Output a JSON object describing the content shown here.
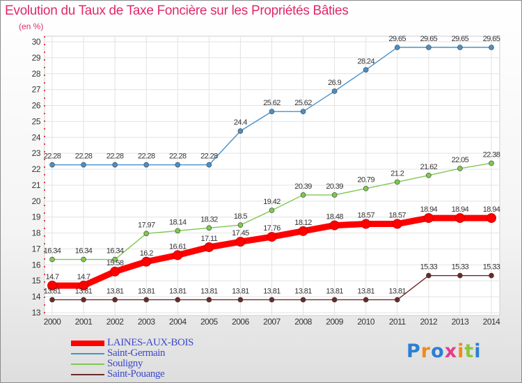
{
  "chart_data": {
    "type": "line",
    "title": "Evolution du Taux de Taxe Foncière sur les Propriétés Bâties",
    "unit_label": "(en %)",
    "x": [
      "2000",
      "2001",
      "2002",
      "2003",
      "2004",
      "2005",
      "2006",
      "2007",
      "2008",
      "2009",
      "2010",
      "2011",
      "2012",
      "2013",
      "2014"
    ],
    "ylim": [
      13,
      30
    ],
    "yticks": [
      13,
      14,
      15,
      16,
      17,
      18,
      19,
      20,
      21,
      22,
      23,
      24,
      25,
      26,
      27,
      28,
      29,
      30
    ],
    "grid": true,
    "legend_position": "bottom-left",
    "series": [
      {
        "name": "LAINES-AUX-BOIS",
        "color": "#ff0000",
        "values": [
          14.7,
          14.7,
          15.58,
          16.2,
          16.61,
          17.11,
          17.45,
          17.76,
          18.12,
          18.48,
          18.57,
          18.57,
          18.94,
          18.94,
          18.94
        ],
        "labels": [
          "14.7",
          "14.7",
          "15.58",
          "16.2",
          "16.61",
          "17.11",
          "17.45",
          "17.76",
          "18.12",
          "18.48",
          "18.57",
          "18.57",
          "18.94",
          "18.94",
          "18.94"
        ]
      },
      {
        "name": "Saint-Germain",
        "color": "#4a90c8",
        "values": [
          22.28,
          22.28,
          22.28,
          22.28,
          22.28,
          22.28,
          24.4,
          25.62,
          25.62,
          26.9,
          28.24,
          29.65,
          29.65,
          29.65,
          29.65
        ],
        "labels": [
          "22.28",
          "22.28",
          "22.28",
          "22.28",
          "22.28",
          "22.28",
          "24.4",
          "25.62",
          "25.62",
          "26.9",
          "28.24",
          "29.65",
          "29.65",
          "29.65",
          "29.65"
        ]
      },
      {
        "name": "Souligny",
        "color": "#7ec850",
        "values": [
          16.34,
          16.34,
          16.34,
          17.97,
          18.14,
          18.32,
          18.5,
          19.42,
          20.39,
          20.39,
          20.79,
          21.2,
          21.62,
          22.05,
          22.38
        ],
        "labels": [
          "16.34",
          "16.34",
          "16.34",
          "17.97",
          "18.14",
          "18.32",
          "18.5",
          "19.42",
          "20.39",
          "20.39",
          "20.79",
          "21.2",
          "21.62",
          "22.05",
          "22.38"
        ]
      },
      {
        "name": "Saint-Pouange",
        "color": "#6b2a2a",
        "values": [
          13.81,
          13.81,
          13.81,
          13.81,
          13.81,
          13.81,
          13.81,
          13.81,
          13.81,
          13.81,
          13.81,
          13.81,
          15.33,
          15.33,
          15.33
        ],
        "labels": [
          "13.81",
          "13.81",
          "13.81",
          "13.81",
          "13.81",
          "13.81",
          "13.81",
          "13.81",
          "13.81",
          "13.81",
          "13.81",
          "13.81",
          "15.33",
          "15.33",
          "15.33"
        ]
      }
    ]
  },
  "logo": {
    "text": "Proxiti",
    "colors": [
      "#2a7fd4",
      "#f08a1c",
      "#2a7fd4",
      "#e83a8a",
      "#f08a1c",
      "#8cc63f",
      "#2a7fd4"
    ]
  }
}
